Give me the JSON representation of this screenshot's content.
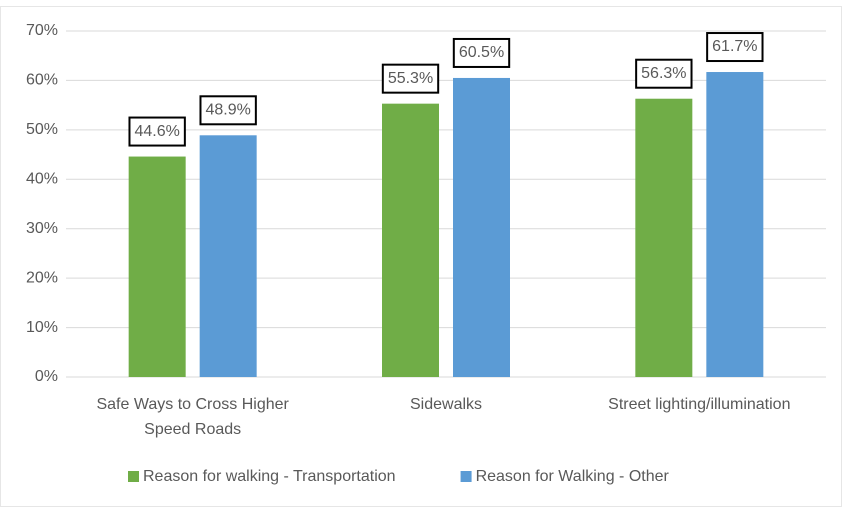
{
  "chart_data": {
    "type": "bar",
    "categories": [
      "Safe Ways to Cross Higher Speed Roads",
      "Sidewalks",
      "Street lighting/illumination"
    ],
    "series": [
      {
        "name": "Reason for walking - Transportation",
        "color": "#70ad47",
        "values": [
          44.6,
          55.3,
          56.3
        ],
        "value_labels": [
          "44.6%",
          "55.3%",
          "56.3%"
        ]
      },
      {
        "name": "Reason for Walking - Other",
        "color": "#5b9bd5",
        "values": [
          48.9,
          60.5,
          61.7
        ],
        "value_labels": [
          "48.9%",
          "60.5%",
          "61.7%"
        ]
      }
    ],
    "ylim": [
      0,
      70
    ],
    "yticks": [
      {
        "value": 0,
        "label": "0%"
      },
      {
        "value": 10,
        "label": "10%"
      },
      {
        "value": 20,
        "label": "20%"
      },
      {
        "value": 30,
        "label": "30%"
      },
      {
        "value": 40,
        "label": "40%"
      },
      {
        "value": 50,
        "label": "50%"
      },
      {
        "value": 60,
        "label": "60%"
      },
      {
        "value": 70,
        "label": "70%"
      }
    ],
    "grid": true,
    "legend": "bottom"
  }
}
